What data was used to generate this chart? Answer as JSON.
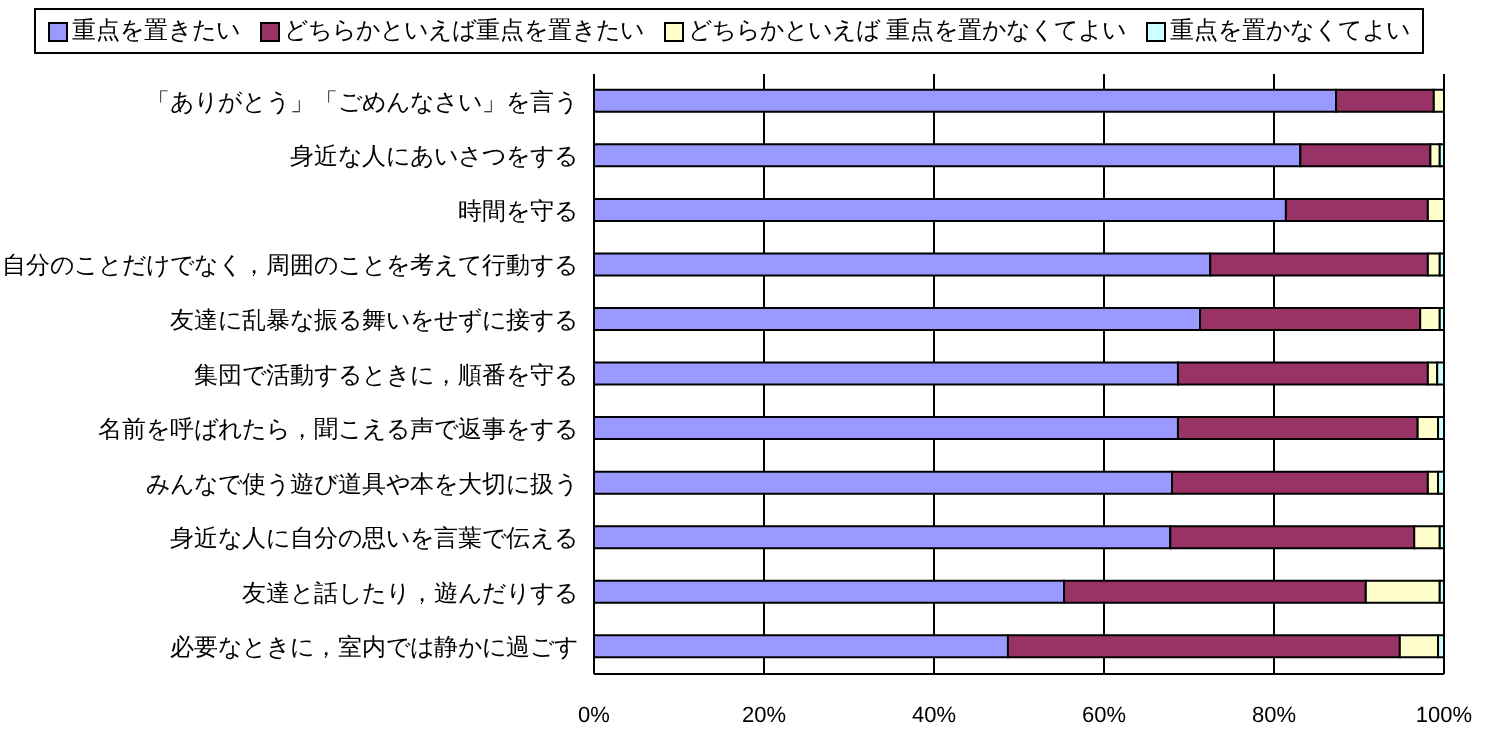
{
  "chart_data": {
    "type": "bar",
    "orientation": "horizontal",
    "stacked": true,
    "categories": [
      "「ありがとう」「ごめんなさい」を言う",
      "身近な人にあいさつをする",
      "時間を守る",
      "自分のことだけでなく，周囲のことを考えて行動する",
      "友達に乱暴な振る舞いをせずに接する",
      "集団で活動するときに，順番を守る",
      "名前を呼ばれたら，聞こえる声で返事をする",
      "みんなで使う遊び道具や本を大切に扱う",
      "身近な人に自分の思いを言葉で伝える",
      "友達と話したり，遊んだりする",
      "必要なときに，室内では静かに過ごす"
    ],
    "series": [
      {
        "name": "重点を置きたい",
        "color": "#9999ff",
        "values": [
          87.3,
          83.1,
          81.4,
          72.5,
          71.3,
          68.7,
          68.7,
          68.0,
          67.8,
          55.3,
          48.7
        ]
      },
      {
        "name": "どちらかといえば重点を置きたい",
        "color": "#993366",
        "values": [
          11.5,
          15.3,
          16.7,
          25.6,
          25.9,
          29.4,
          28.2,
          30.1,
          28.7,
          35.5,
          46.1
        ]
      },
      {
        "name": "どちらかといえば 重点を置かなくてよい",
        "color": "#ffffcc",
        "values": [
          1.2,
          1.1,
          1.9,
          1.4,
          2.3,
          1.1,
          2.4,
          1.2,
          3.0,
          8.7,
          4.5
        ]
      },
      {
        "name": "重点を置かなくてよい",
        "color": "#ccffff",
        "values": [
          0,
          0.5,
          0,
          0.5,
          0.5,
          0.8,
          0.7,
          0.7,
          0.5,
          0.5,
          0.7
        ]
      }
    ],
    "xlim": [
      0,
      100
    ],
    "xticks": [
      {
        "value": 0,
        "label": "0%"
      },
      {
        "value": 20,
        "label": "20%"
      },
      {
        "value": 40,
        "label": "40%"
      },
      {
        "value": 60,
        "label": "60%"
      },
      {
        "value": 80,
        "label": "80%"
      },
      {
        "value": 100,
        "label": "100%"
      }
    ],
    "grid": "x",
    "legend": "top"
  }
}
